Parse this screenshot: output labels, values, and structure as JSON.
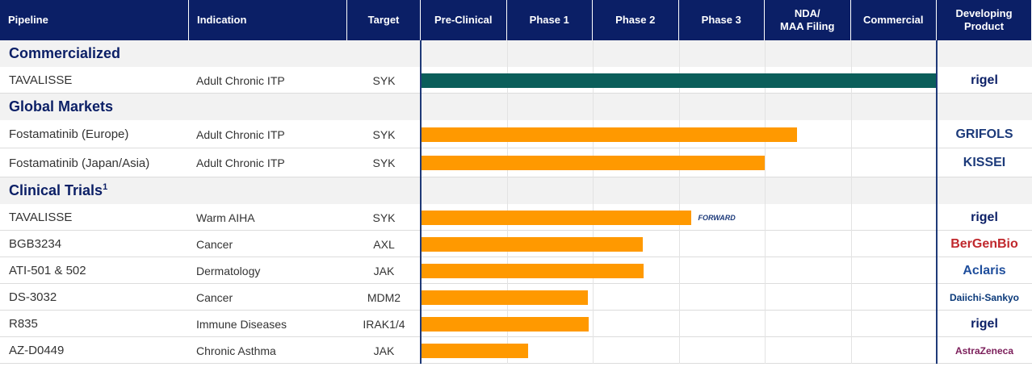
{
  "header": {
    "columns": [
      "Pipeline",
      "Indication",
      "Target"
    ],
    "stages": [
      [
        "Pre-Clinical"
      ],
      [
        "Phase 1"
      ],
      [
        "Phase 2"
      ],
      [
        "Phase 3"
      ],
      [
        "NDA/",
        "MAA Filing"
      ],
      [
        "Commercial"
      ]
    ],
    "product": [
      "Developing",
      "Product"
    ]
  },
  "sections": [
    {
      "title": "Commercialized",
      "rows": [
        {
          "pipeline": "TAVALISSE",
          "indication": "Adult Chronic ITP",
          "target": "SYK",
          "progress": 6,
          "color": "#0b5e5a",
          "partner": "rigel",
          "partner_color": "#0b1f66"
        }
      ]
    },
    {
      "title": "Global Markets",
      "rows": [
        {
          "pipeline": "Fostamatinib (Europe)",
          "indication": "Adult Chronic ITP",
          "target": "SYK",
          "progress": 4.38,
          "color": "#ff9900",
          "partner": "GRIFOLS",
          "partner_color": "#1c3a7a"
        },
        {
          "pipeline": "Fostamatinib (Japan/Asia)",
          "indication": "Adult Chronic ITP",
          "target": "SYK",
          "progress": 4.0,
          "color": "#ff9900",
          "partner": "KISSEI",
          "partner_color": "#1c3a7a"
        }
      ]
    },
    {
      "title": "Clinical Trials",
      "superscript": "1",
      "rows": [
        {
          "pipeline": "TAVALISSE",
          "indication": "Warm AIHA",
          "target": "SYK",
          "progress": 3.15,
          "color": "#ff9900",
          "partner": "rigel",
          "partner_color": "#0b1f66",
          "trial_logo": "FORWARD"
        },
        {
          "pipeline": "BGB3234",
          "indication": "Cancer",
          "target": "AXL",
          "progress": 2.58,
          "color": "#ff9900",
          "partner": "BerGenBio",
          "partner_color": "#c0282d"
        },
        {
          "pipeline": "ATI-501 & 502",
          "indication": "Dermatology",
          "target": "JAK",
          "progress": 2.59,
          "color": "#ff9900",
          "partner": "Aclaris",
          "partner_color": "#1f4e9c"
        },
        {
          "pipeline": "DS-3032",
          "indication": "Cancer",
          "target": "MDM2",
          "progress": 1.94,
          "color": "#ff9900",
          "partner": "Daiichi-Sankyo",
          "partner_color": "#0b3a7a"
        },
        {
          "pipeline": "R835",
          "indication": "Immune Diseases",
          "target": "IRAK1/4",
          "progress": 1.95,
          "color": "#ff9900",
          "partner": "rigel",
          "partner_color": "#0b1f66"
        },
        {
          "pipeline": "AZ-D0449",
          "indication": "Chronic Asthma",
          "target": "JAK",
          "progress": 1.25,
          "color": "#ff9900",
          "partner": "AstraZeneca",
          "partner_color": "#7b1e5a"
        }
      ]
    }
  ]
}
